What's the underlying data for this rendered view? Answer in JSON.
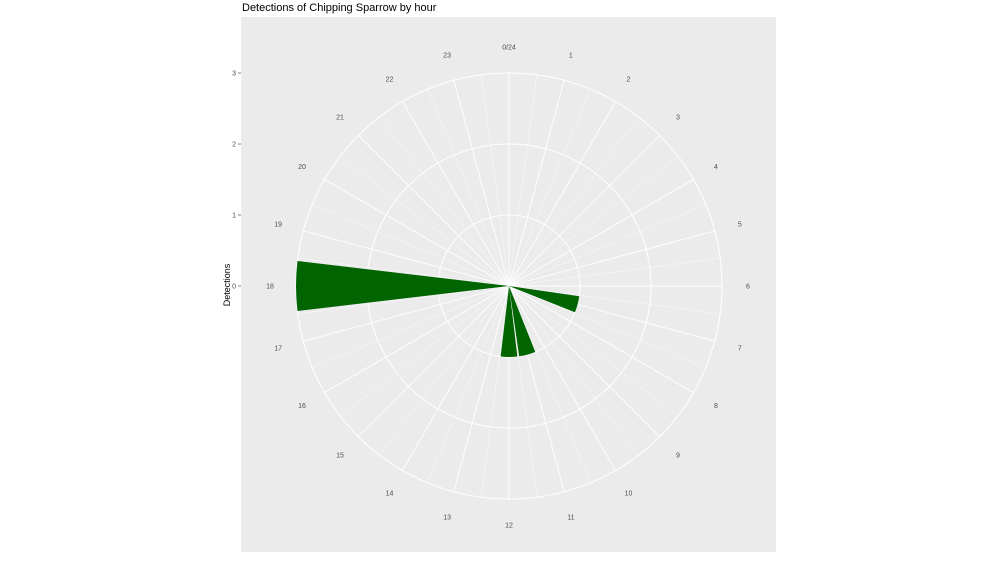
{
  "chart_data": {
    "type": "bar",
    "coord": "polar",
    "title": "Detections of Chipping Sparrow by hour",
    "ylabel": "Detections",
    "xlabel": "",
    "x": [
      0,
      1,
      2,
      3,
      4,
      5,
      6,
      7,
      8,
      9,
      10,
      11,
      12,
      13,
      14,
      15,
      16,
      17,
      18,
      19,
      20,
      21,
      22,
      23
    ],
    "values": [
      0,
      0,
      0,
      0,
      0,
      0,
      0,
      1,
      0,
      0,
      0,
      1,
      1,
      0,
      0,
      0,
      0,
      0,
      3,
      0,
      0,
      0,
      0,
      0
    ],
    "ylim": [
      0,
      3
    ],
    "y_ticks": [
      "0",
      "1",
      "2",
      "3"
    ],
    "hour_labels": [
      "0/24",
      "1",
      "2",
      "3",
      "4",
      "5",
      "6",
      "7",
      "8",
      "9",
      "10",
      "11",
      "12",
      "13",
      "14",
      "15",
      "16",
      "17",
      "18",
      "19",
      "20",
      "21",
      "22",
      "23"
    ],
    "grid": true,
    "legend": "none",
    "colors": {
      "bar": "#006400",
      "panel": "#EBEBEB",
      "grid": "#FFFFFF"
    }
  }
}
